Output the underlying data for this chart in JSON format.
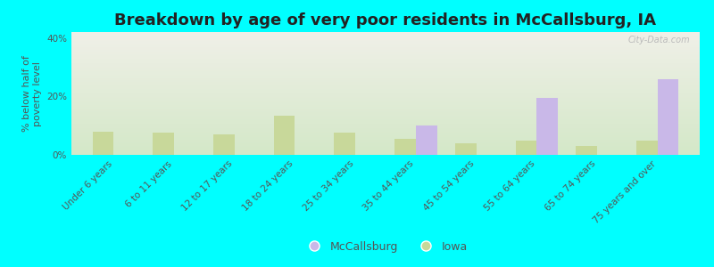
{
  "title": "Breakdown by age of very poor residents in McCallsburg, IA",
  "ylabel": "% below half of\npoverty level",
  "categories": [
    "Under 6 years",
    "6 to 11 years",
    "12 to 17 years",
    "18 to 24 years",
    "25 to 34 years",
    "35 to 44 years",
    "45 to 54 years",
    "55 to 64 years",
    "65 to 74 years",
    "75 years and over"
  ],
  "mccallsburg_values": [
    0,
    0,
    0,
    0,
    0,
    10,
    0,
    19.5,
    0,
    26
  ],
  "iowa_values": [
    8,
    7.5,
    7,
    13.5,
    7.5,
    5.5,
    4,
    5,
    3,
    5
  ],
  "mccallsburg_color": "#c9b8e8",
  "iowa_color": "#c8d89a",
  "background_color": "#00ffff",
  "plot_bg_top": "#f0f0e8",
  "plot_bg_bottom": "#d4e8c8",
  "ylim": [
    0,
    42
  ],
  "yticks": [
    0,
    20,
    40
  ],
  "ytick_labels": [
    "0%",
    "20%",
    "40%"
  ],
  "bar_width": 0.35,
  "title_fontsize": 13,
  "axis_fontsize": 8,
  "tick_fontsize": 7.5,
  "legend_fontsize": 9,
  "watermark": "City-Data.com"
}
